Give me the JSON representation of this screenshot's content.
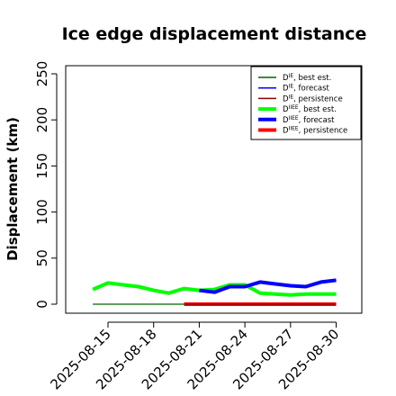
{
  "chart_data": {
    "type": "line",
    "title": "Ice edge displacement distance",
    "ylabel": "Displacement (km)",
    "xlabel": "",
    "ylim": [
      0,
      250
    ],
    "yticks": [
      0,
      50,
      100,
      150,
      200,
      250
    ],
    "xticks": [
      "2025-08-15",
      "2025-08-18",
      "2025-08-21",
      "2025-08-24",
      "2025-08-27",
      "2025-08-30"
    ],
    "highlighted_xtick": "2025-08-21",
    "highlight_color": "#228B22",
    "xlim": [
      "2025-08-12",
      "2025-08-31"
    ],
    "grid": false,
    "legend_position": "top-right",
    "series": [
      {
        "name": "D best est.",
        "sup": "IE",
        "color": "#006400",
        "width": "thin",
        "x": [
          "2025-08-14",
          "2025-08-15",
          "2025-08-16",
          "2025-08-17",
          "2025-08-18",
          "2025-08-19",
          "2025-08-20",
          "2025-08-21"
        ],
        "y": [
          0,
          0,
          0,
          0,
          0,
          0,
          0,
          0
        ]
      },
      {
        "name": "D forecast",
        "sup": "IE",
        "color": "#0000FF",
        "width": "thin",
        "x": [
          "2025-08-20",
          "2025-08-21",
          "2025-08-22",
          "2025-08-23",
          "2025-08-24",
          "2025-08-25",
          "2025-08-26",
          "2025-08-27",
          "2025-08-28",
          "2025-08-29",
          "2025-08-30"
        ],
        "y": [
          0,
          0,
          0,
          0,
          0,
          0,
          0,
          0,
          0,
          0,
          0
        ]
      },
      {
        "name": "D persistence",
        "sup": "IE",
        "color": "#8B0000",
        "width": "thin",
        "x": [
          "2025-08-20",
          "2025-08-21",
          "2025-08-22",
          "2025-08-23",
          "2025-08-24",
          "2025-08-25",
          "2025-08-26",
          "2025-08-27",
          "2025-08-28",
          "2025-08-29",
          "2025-08-30"
        ],
        "y": [
          0,
          0,
          0,
          0,
          0,
          0,
          0,
          0,
          0,
          0,
          0
        ]
      },
      {
        "name": "D best est.",
        "sup": "IIEE",
        "color": "#00FF00",
        "width": "thick",
        "x": [
          "2025-08-14",
          "2025-08-15",
          "2025-08-16",
          "2025-08-17",
          "2025-08-18",
          "2025-08-19",
          "2025-08-20",
          "2025-08-21",
          "2025-08-22",
          "2025-08-23",
          "2025-08-24",
          "2025-08-25",
          "2025-08-26",
          "2025-08-27",
          "2025-08-28",
          "2025-08-29",
          "2025-08-30"
        ],
        "y": [
          16,
          23,
          21,
          19,
          15,
          12,
          17,
          15,
          16,
          21,
          21,
          12,
          11,
          10,
          11,
          11,
          11
        ]
      },
      {
        "name": "D forecast",
        "sup": "IIEE",
        "color": "#0000FF",
        "width": "thick",
        "x": [
          "2025-08-21",
          "2025-08-22",
          "2025-08-23",
          "2025-08-24",
          "2025-08-25",
          "2025-08-26",
          "2025-08-27",
          "2025-08-28",
          "2025-08-29",
          "2025-08-30"
        ],
        "y": [
          15,
          13,
          19,
          19,
          24,
          22,
          20,
          19,
          24,
          26
        ]
      },
      {
        "name": "D persistence",
        "sup": "IIEE",
        "color": "#FF0000",
        "width": "thick",
        "x": [
          "2025-08-20",
          "2025-08-21",
          "2025-08-22",
          "2025-08-23",
          "2025-08-24",
          "2025-08-25",
          "2025-08-26",
          "2025-08-27",
          "2025-08-28",
          "2025-08-29",
          "2025-08-30"
        ],
        "y": [
          0,
          0,
          0,
          0,
          0,
          0,
          0,
          0,
          0,
          0,
          0
        ]
      }
    ]
  }
}
